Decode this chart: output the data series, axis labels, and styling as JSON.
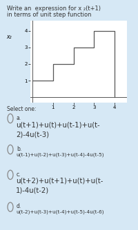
{
  "title_line1": "Write an  expression for x ₂(t+1)",
  "title_line2": "in terms of unit step function",
  "bg_color": "#d6e8f5",
  "plot_bg": "#ffffff",
  "ylabel_label": "x₂",
  "xlabel_ticks": [
    1,
    2,
    3,
    4
  ],
  "ylabel_ticks": [
    1,
    2,
    3,
    4
  ],
  "step_x": [
    0,
    1,
    1,
    2,
    2,
    3,
    3,
    4,
    4,
    4
  ],
  "step_y": [
    1,
    1,
    2,
    2,
    3,
    3,
    4,
    4,
    4,
    0
  ],
  "select_text": "Select one:",
  "options": [
    {
      "label": "a.",
      "text1": "u(t+1)+u(t)+u(t-1)+u(t-",
      "text2": "2)-4u(t-3)",
      "large": true
    },
    {
      "label": "b.",
      "text1": "u(t-1)+u(t-2)+u(t-3)+u(t-4)-4u(t-5)",
      "text2": "",
      "large": false
    },
    {
      "label": "c.",
      "text1": "u(t+2)+u(t+1)+u(t)+u(t-",
      "text2": "1)-4u(t-2)",
      "large": true
    },
    {
      "label": "d.",
      "text1": "u(t-2)+u(t-3)+u(t-4)+u(t-5)-4u(t-6)",
      "text2": "",
      "large": false
    }
  ],
  "circle_color": "#888888",
  "text_color": "#333333",
  "line_color": "#555555",
  "title_fontsize": 6.0,
  "select_fontsize": 5.5,
  "label_fontsize": 5.5,
  "large_option_fontsize": 7.2,
  "small_option_fontsize": 5.2
}
